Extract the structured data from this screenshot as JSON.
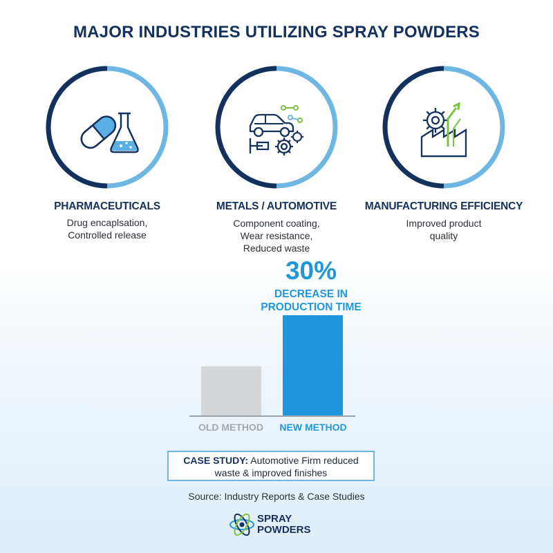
{
  "title": "MAJOR INDUSTRIES UTILIZING SPRAY POWDERS",
  "colors": {
    "navy": "#13315c",
    "accent": "#1f97dc",
    "light_blue": "#6eb7e2",
    "gray_bar": "#d6d7d9",
    "green": "#7cc242"
  },
  "industries": [
    {
      "name": "PHARMACEUTICALS",
      "icon": "pill-flask-icon",
      "desc": [
        "Drug encaplsation,",
        "Controlled release"
      ]
    },
    {
      "name": "METALS / AUTOMOTIVE",
      "icon": "car-gears-icon",
      "desc": [
        "Component coating,",
        "Wear resistance,",
        "Reduced waste"
      ]
    },
    {
      "name": "MANUFACTURING EFFICIENCY",
      "icon": "factory-gear-icon",
      "desc": [
        "Improved product",
        "quality"
      ]
    }
  ],
  "highlight": {
    "value": "30%",
    "text": [
      "DECREASE IN",
      "PRODUCTION TIME"
    ]
  },
  "chart_data": {
    "type": "bar",
    "categories": [
      "OLD METHOD",
      "NEW METHOD"
    ],
    "values": [
      0.49,
      1.0
    ],
    "ylim": [
      0,
      1
    ],
    "grid": false
  },
  "case_study": {
    "label": "CASE STUDY:",
    "text1": "Automotive Firm reduced",
    "text2": "waste & improved finishes"
  },
  "source": "Source: Industry Reports & Case Studies",
  "logo": {
    "icon": "atom-icon",
    "line1": "SPRAY",
    "line2": "POWDERS"
  }
}
